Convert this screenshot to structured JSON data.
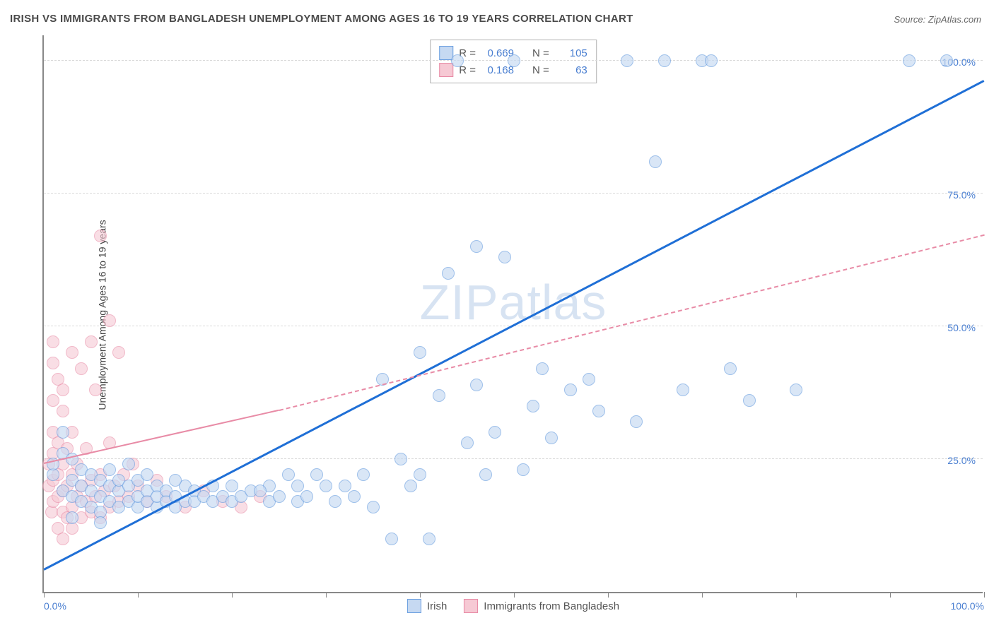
{
  "title": "IRISH VS IMMIGRANTS FROM BANGLADESH UNEMPLOYMENT AMONG AGES 16 TO 19 YEARS CORRELATION CHART",
  "source_label": "Source: ",
  "source_value": "ZipAtlas.com",
  "ylabel": "Unemployment Among Ages 16 to 19 years",
  "watermark_a": "ZIP",
  "watermark_b": "atlas",
  "chart": {
    "type": "scatter",
    "background_color": "#ffffff",
    "grid_color": "#d9d9d9",
    "axis_color": "#888888",
    "xlim": [
      0,
      100
    ],
    "ylim": [
      0,
      105
    ],
    "yticks": [
      {
        "v": 25,
        "label": "25.0%"
      },
      {
        "v": 50,
        "label": "50.0%"
      },
      {
        "v": 75,
        "label": "75.0%"
      },
      {
        "v": 100,
        "label": "100.0%"
      }
    ],
    "xticks_minor": [
      0,
      10,
      20,
      30,
      40,
      50,
      60,
      70,
      80,
      90,
      100
    ],
    "xtick_labels": [
      {
        "v": 0,
        "label": "0.0%"
      },
      {
        "v": 100,
        "label": "100.0%"
      }
    ],
    "series": [
      {
        "name": "Irish",
        "fill": "#c6d9f2",
        "stroke": "#6b9fe0",
        "fill_opacity": 0.65,
        "marker_radius": 9,
        "stats": {
          "R": "0.669",
          "N": "105"
        },
        "trend": {
          "color": "#1f6fd6",
          "width": 3,
          "solid_from": [
            0,
            4
          ],
          "solid_to": [
            100,
            96
          ],
          "dash_from": null,
          "dash_to": null
        },
        "points": [
          [
            1,
            22
          ],
          [
            1,
            24
          ],
          [
            2,
            19
          ],
          [
            2,
            26
          ],
          [
            3,
            18
          ],
          [
            3,
            21
          ],
          [
            3,
            25
          ],
          [
            4,
            17
          ],
          [
            4,
            20
          ],
          [
            4,
            23
          ],
          [
            5,
            16
          ],
          [
            5,
            19
          ],
          [
            5,
            22
          ],
          [
            6,
            15
          ],
          [
            6,
            18
          ],
          [
            6,
            21
          ],
          [
            7,
            17
          ],
          [
            7,
            20
          ],
          [
            7,
            23
          ],
          [
            8,
            16
          ],
          [
            8,
            19
          ],
          [
            8,
            21
          ],
          [
            9,
            17
          ],
          [
            9,
            20
          ],
          [
            10,
            16
          ],
          [
            10,
            18
          ],
          [
            10,
            21
          ],
          [
            11,
            17
          ],
          [
            11,
            19
          ],
          [
            12,
            16
          ],
          [
            12,
            18
          ],
          [
            12,
            20
          ],
          [
            13,
            17
          ],
          [
            13,
            19
          ],
          [
            14,
            16
          ],
          [
            14,
            18
          ],
          [
            15,
            17
          ],
          [
            15,
            20
          ],
          [
            16,
            17
          ],
          [
            16,
            19
          ],
          [
            17,
            18
          ],
          [
            18,
            17
          ],
          [
            18,
            20
          ],
          [
            19,
            18
          ],
          [
            20,
            17
          ],
          [
            20,
            20
          ],
          [
            21,
            18
          ],
          [
            22,
            19
          ],
          [
            24,
            17
          ],
          [
            24,
            20
          ],
          [
            25,
            18
          ],
          [
            26,
            22
          ],
          [
            27,
            17
          ],
          [
            27,
            20
          ],
          [
            28,
            18
          ],
          [
            29,
            22
          ],
          [
            30,
            20
          ],
          [
            31,
            17
          ],
          [
            32,
            20
          ],
          [
            33,
            18
          ],
          [
            34,
            22
          ],
          [
            36,
            40
          ],
          [
            37,
            10
          ],
          [
            38,
            25
          ],
          [
            39,
            20
          ],
          [
            40,
            22
          ],
          [
            40,
            45
          ],
          [
            41,
            10
          ],
          [
            42,
            37
          ],
          [
            43,
            60
          ],
          [
            44,
            100
          ],
          [
            45,
            28
          ],
          [
            46,
            39
          ],
          [
            46,
            65
          ],
          [
            47,
            22
          ],
          [
            48,
            30
          ],
          [
            49,
            63
          ],
          [
            50,
            100
          ],
          [
            51,
            23
          ],
          [
            52,
            35
          ],
          [
            53,
            42
          ],
          [
            54,
            29
          ],
          [
            56,
            38
          ],
          [
            58,
            40
          ],
          [
            59,
            34
          ],
          [
            62,
            100
          ],
          [
            63,
            32
          ],
          [
            65,
            81
          ],
          [
            66,
            100
          ],
          [
            68,
            38
          ],
          [
            70,
            100
          ],
          [
            71,
            100
          ],
          [
            73,
            42
          ],
          [
            75,
            36
          ],
          [
            80,
            38
          ],
          [
            92,
            100
          ],
          [
            96,
            100
          ],
          [
            2,
            30
          ],
          [
            3,
            14
          ],
          [
            6,
            13
          ],
          [
            9,
            24
          ],
          [
            11,
            22
          ],
          [
            14,
            21
          ],
          [
            23,
            19
          ],
          [
            35,
            16
          ]
        ]
      },
      {
        "name": "Immigrants from Bangladesh",
        "fill": "#f6c9d4",
        "stroke": "#e88ba6",
        "fill_opacity": 0.6,
        "marker_radius": 9,
        "stats": {
          "R": "0.168",
          "N": "63"
        },
        "trend": {
          "color": "#e88ba6",
          "width": 2,
          "solid_from": [
            0,
            24
          ],
          "solid_to": [
            25,
            34
          ],
          "dash_from": [
            25,
            34
          ],
          "dash_to": [
            100,
            67
          ]
        },
        "points": [
          [
            0.5,
            20
          ],
          [
            0.5,
            24
          ],
          [
            0.8,
            15
          ],
          [
            1,
            17
          ],
          [
            1,
            21
          ],
          [
            1,
            26
          ],
          [
            1,
            30
          ],
          [
            1,
            36
          ],
          [
            1,
            43
          ],
          [
            1,
            47
          ],
          [
            1.5,
            12
          ],
          [
            1.5,
            18
          ],
          [
            1.5,
            22
          ],
          [
            1.5,
            28
          ],
          [
            1.5,
            40
          ],
          [
            2,
            10
          ],
          [
            2,
            15
          ],
          [
            2,
            19
          ],
          [
            2,
            24
          ],
          [
            2,
            34
          ],
          [
            2,
            38
          ],
          [
            2.5,
            14
          ],
          [
            2.5,
            20
          ],
          [
            2.5,
            27
          ],
          [
            3,
            12
          ],
          [
            3,
            16
          ],
          [
            3,
            22
          ],
          [
            3,
            30
          ],
          [
            3,
            45
          ],
          [
            3.5,
            18
          ],
          [
            3.5,
            24
          ],
          [
            4,
            14
          ],
          [
            4,
            20
          ],
          [
            4,
            42
          ],
          [
            4.5,
            17
          ],
          [
            4.5,
            27
          ],
          [
            5,
            47
          ],
          [
            5,
            15
          ],
          [
            5,
            21
          ],
          [
            5.5,
            18
          ],
          [
            5.5,
            38
          ],
          [
            6,
            14
          ],
          [
            6,
            22
          ],
          [
            6,
            67
          ],
          [
            6.5,
            19
          ],
          [
            7,
            16
          ],
          [
            7,
            28
          ],
          [
            7,
            51
          ],
          [
            7.5,
            20
          ],
          [
            8,
            17
          ],
          [
            8,
            45
          ],
          [
            8.5,
            22
          ],
          [
            9,
            18
          ],
          [
            9.5,
            24
          ],
          [
            10,
            20
          ],
          [
            11,
            17
          ],
          [
            12,
            21
          ],
          [
            13,
            18
          ],
          [
            15,
            16
          ],
          [
            17,
            19
          ],
          [
            19,
            17
          ],
          [
            21,
            16
          ],
          [
            23,
            18
          ]
        ]
      }
    ]
  },
  "legend": {
    "r_label": "R =",
    "n_label": "N ="
  }
}
